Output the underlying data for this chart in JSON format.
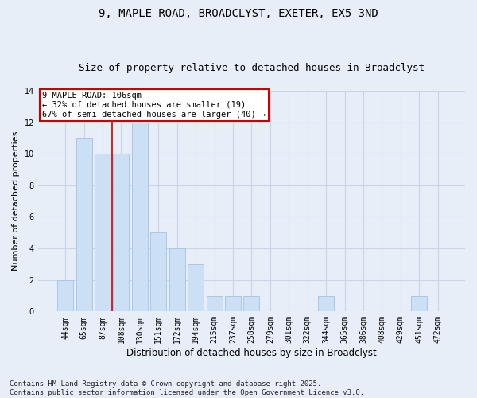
{
  "title": "9, MAPLE ROAD, BROADCLYST, EXETER, EX5 3ND",
  "subtitle": "Size of property relative to detached houses in Broadclyst",
  "xlabel": "Distribution of detached houses by size in Broadclyst",
  "ylabel": "Number of detached properties",
  "categories": [
    "44sqm",
    "65sqm",
    "87sqm",
    "108sqm",
    "130sqm",
    "151sqm",
    "172sqm",
    "194sqm",
    "215sqm",
    "237sqm",
    "258sqm",
    "279sqm",
    "301sqm",
    "322sqm",
    "344sqm",
    "365sqm",
    "386sqm",
    "408sqm",
    "429sqm",
    "451sqm",
    "472sqm"
  ],
  "values": [
    2,
    11,
    10,
    10,
    12,
    5,
    4,
    3,
    1,
    1,
    1,
    0,
    0,
    0,
    1,
    0,
    0,
    0,
    0,
    1,
    0
  ],
  "bar_color": "#cce0f5",
  "bar_edgecolor": "#a8c8e8",
  "grid_color": "#c8d4e8",
  "background_color": "#e8eef8",
  "annotation_box_text": "9 MAPLE ROAD: 106sqm\n← 32% of detached houses are smaller (19)\n67% of semi-detached houses are larger (40) →",
  "annotation_box_color": "#ffffff",
  "annotation_box_edgecolor": "#cc0000",
  "vline_color": "#cc0000",
  "vline_position": 2.5,
  "ylim": [
    0,
    14
  ],
  "yticks": [
    0,
    2,
    4,
    6,
    8,
    10,
    12,
    14
  ],
  "footer": "Contains HM Land Registry data © Crown copyright and database right 2025.\nContains public sector information licensed under the Open Government Licence v3.0.",
  "title_fontsize": 10,
  "subtitle_fontsize": 9,
  "xlabel_fontsize": 8.5,
  "ylabel_fontsize": 8,
  "tick_fontsize": 7,
  "annot_fontsize": 7.5,
  "footer_fontsize": 6.5
}
